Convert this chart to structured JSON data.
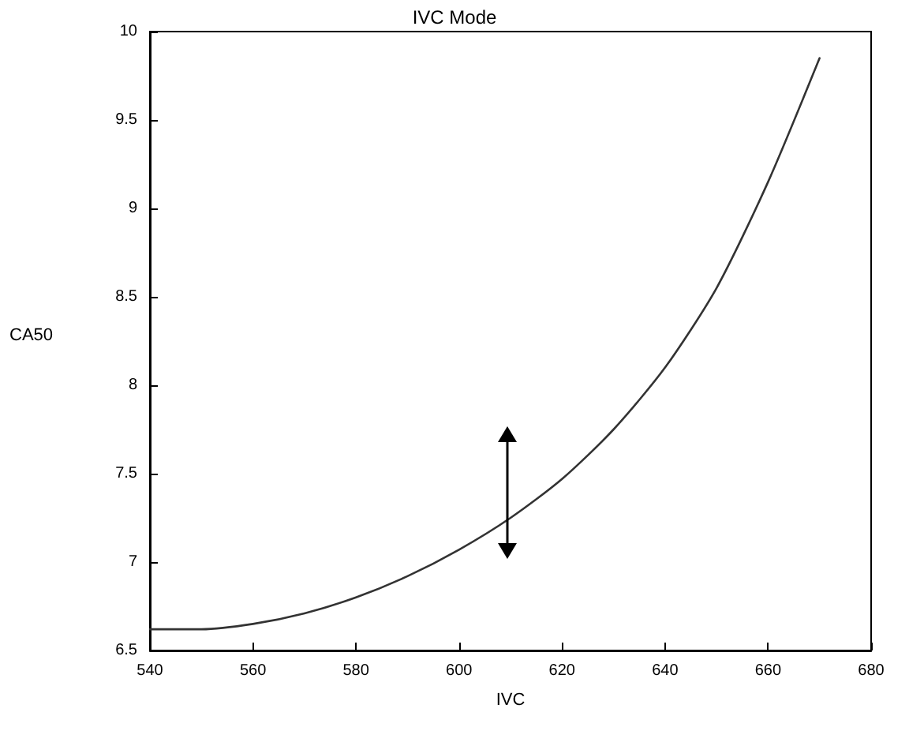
{
  "chart_data": {
    "type": "line",
    "title": "IVC Mode",
    "xlabel": "IVC",
    "ylabel": "CA50",
    "x": [
      540,
      550,
      560,
      570,
      580,
      590,
      600,
      610,
      620,
      630,
      640,
      650,
      660,
      670
    ],
    "series": [
      {
        "color": "#333333",
        "values": [
          6.62,
          6.62,
          6.65,
          6.71,
          6.8,
          6.92,
          7.07,
          7.25,
          7.47,
          7.75,
          8.1,
          8.55,
          9.15,
          9.85
        ]
      }
    ],
    "xlim": [
      540,
      680
    ],
    "xticks": [
      540,
      560,
      580,
      600,
      620,
      640,
      660,
      680
    ],
    "ylim": [
      6.5,
      10
    ],
    "yticks": [
      6.5,
      7,
      7.5,
      8,
      8.5,
      9,
      9.5,
      10
    ],
    "grid": false,
    "marker": "none",
    "line_style": "solid"
  }
}
